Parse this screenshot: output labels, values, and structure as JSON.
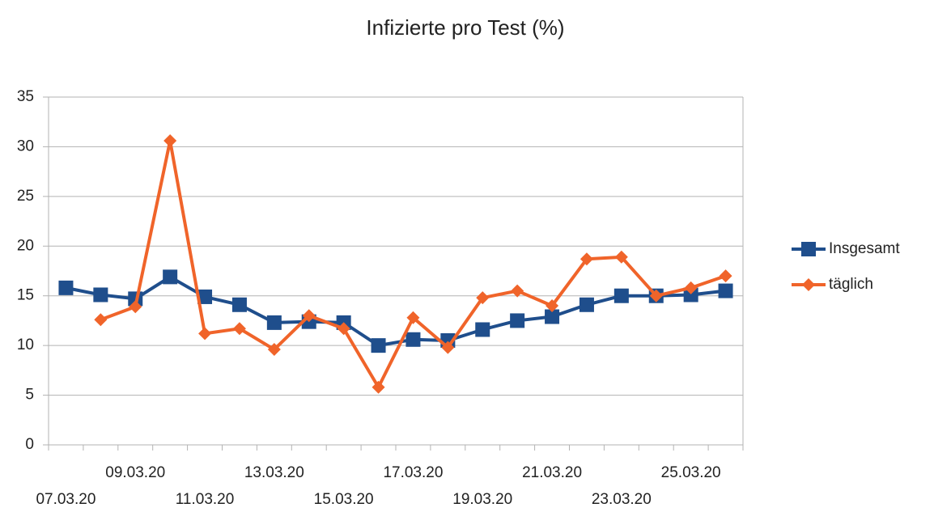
{
  "chart_data": {
    "type": "line",
    "title": "Infizierte pro Test (%)",
    "categories": [
      "07.03.20",
      null,
      "09.03.20",
      null,
      "11.03.20",
      null,
      "13.03.20",
      null,
      "15.03.20",
      null,
      "17.03.20",
      null,
      "19.03.20",
      null,
      "21.03.20",
      null,
      "23.03.20",
      null,
      "25.03.20",
      null
    ],
    "series": [
      {
        "name": "Insgesamt",
        "color": "#1f4e8c",
        "marker": "square",
        "values": [
          15.8,
          15.1,
          14.7,
          16.9,
          14.9,
          14.1,
          12.3,
          12.4,
          12.3,
          10.0,
          10.6,
          10.5,
          11.6,
          12.5,
          12.9,
          14.1,
          15.0,
          15.0,
          15.1,
          15.5
        ]
      },
      {
        "name": "täglich",
        "color": "#f0642a",
        "marker": "diamond",
        "values": [
          null,
          12.6,
          13.9,
          30.6,
          11.2,
          11.7,
          9.6,
          13.0,
          11.7,
          5.8,
          12.8,
          9.8,
          14.8,
          15.5,
          14.0,
          18.7,
          18.9,
          15.0,
          15.8,
          17.0
        ]
      }
    ],
    "ylim": [
      0,
      35
    ],
    "yticks": [
      0,
      5,
      10,
      15,
      20,
      25,
      30,
      35
    ],
    "grid": true,
    "legend": "right"
  }
}
